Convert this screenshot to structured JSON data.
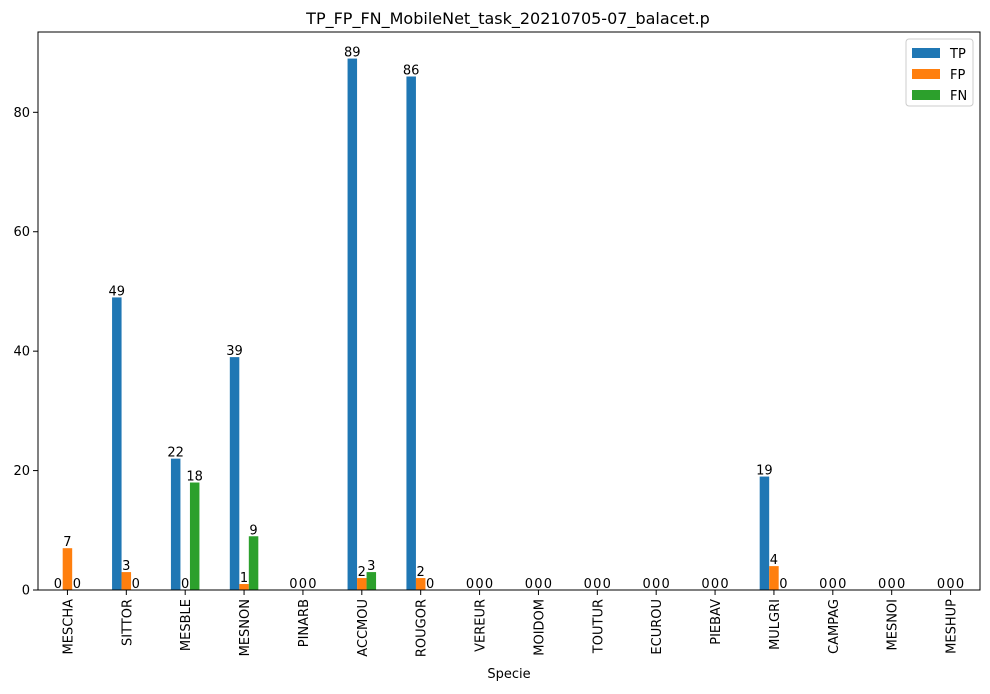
{
  "chart_data": {
    "type": "bar",
    "title": "TP_FP_FN_MobileNet_task_20210705-07_balacet.p",
    "xlabel": "Specie",
    "ylabel": "",
    "ylim": [
      0,
      93.45
    ],
    "yticks": [
      0,
      20,
      40,
      60,
      80
    ],
    "grid": false,
    "legend_position": "top-right",
    "categories": [
      "MESCHA",
      "SITTOR",
      "MESBLE",
      "MESNON",
      "PINARB",
      "ACCMOU",
      "ROUGOR",
      "VEREUR",
      "MOIDOM",
      "TOUTUR",
      "ECUROU",
      "PIEBAV",
      "MULGRI",
      "CAMPAG",
      "MESNOI",
      "MESHUP"
    ],
    "series": [
      {
        "name": "TP",
        "color": "#1f77b4",
        "values": [
          0,
          49,
          22,
          39,
          0,
          89,
          86,
          0,
          0,
          0,
          0,
          0,
          19,
          0,
          0,
          0
        ]
      },
      {
        "name": "FP",
        "color": "#ff7f0e",
        "values": [
          7,
          3,
          0,
          1,
          0,
          2,
          2,
          0,
          0,
          0,
          0,
          0,
          4,
          0,
          0,
          0
        ]
      },
      {
        "name": "FN",
        "color": "#2ca02c",
        "values": [
          0,
          0,
          18,
          9,
          0,
          3,
          0,
          0,
          0,
          0,
          0,
          0,
          0,
          0,
          0,
          0
        ]
      }
    ]
  }
}
